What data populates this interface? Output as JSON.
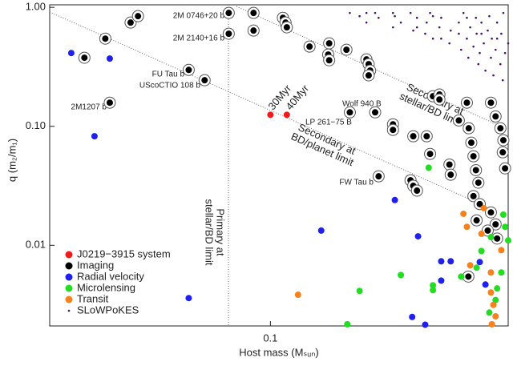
{
  "chart_data": {
    "type": "scatter",
    "xlabel": "Host mass (Mₛᵤₙ)",
    "ylabel": "q (m₂/m₁)",
    "xscale": "log",
    "yscale": "log",
    "xlim": [
      0.0218,
      0.516
    ],
    "ylim": [
      0.0021,
      1.05
    ],
    "xticks": [
      0.1
    ],
    "yticks": [
      {
        "value": 1,
        "label": "1.00"
      },
      {
        "value": 0.1,
        "label": "0.10"
      },
      0.01
    ],
    "legend": "lower left",
    "annotations": [
      "2M 0746+20 b",
      "2M 2140+16 b",
      "FU Tau b",
      "UScoCTIO 108 b",
      "2M1207 b",
      "30Myr",
      "40Myr",
      "Wolf 940 B",
      "LP 261−75 B",
      "FW Tau b",
      [
        "Secondary at",
        "stellar/BD limit"
      ],
      [
        "Secondary at",
        "BD/planet limit"
      ],
      [
        "Primary at",
        "stellar/BD limit"
      ]
    ],
    "series": [
      {
        "name": "J0219−3915 system",
        "color": "#ee1c1c",
        "outline": false,
        "x": [
          0.1,
          0.112
        ],
        "y": [
          0.125,
          0.125
        ]
      },
      {
        "name": "Imaging",
        "color": "#000000",
        "outline": true,
        "x": [
          0.0277,
          0.032,
          0.033,
          0.0381,
          0.0401,
          0.0569,
          0.0635,
          0.075,
          0.075,
          0.089,
          0.089,
          0.109,
          0.111,
          0.112,
          0.131,
          0.15,
          0.149,
          0.15,
          0.169,
          0.173,
          0.194,
          0.197,
          0.199,
          0.197,
          0.206,
          0.233,
          0.233,
          0.211,
          0.268,
          0.263,
          0.268,
          0.275,
          0.294,
          0.301,
          0.307,
          0.321,
          0.321,
          0.344,
          0.347,
          0.367,
          0.388,
          0.393,
          0.4,
          0.406,
          0.413,
          0.42,
          0.406,
          0.424,
          0.458,
          0.473,
          0.489,
          0.499,
          0.458,
          0.473,
          0.478,
          0.448,
          0.415,
          0.392,
          0.497,
          0.505
        ],
        "y": [
          0.377,
          0.546,
          0.158,
          0.745,
          0.843,
          0.298,
          0.244,
          0.897,
          0.6,
          0.897,
          0.638,
          0.817,
          0.745,
          0.679,
          0.468,
          0.498,
          0.401,
          0.359,
          0.44,
          0.131,
          0.365,
          0.333,
          0.294,
          0.268,
          0.131,
          0.104,
          0.0933,
          0.038,
          0.0825,
          0.0352,
          0.0316,
          0.0288,
          0.0825,
          0.0586,
          0.179,
          0.185,
          0.168,
          0.0477,
          0.0392,
          0.112,
          0.158,
          0.0963,
          0.0729,
          0.056,
          0.0428,
          0.0336,
          0.0259,
          0.0222,
          0.158,
          0.121,
          0.0963,
          0.0764,
          0.0189,
          0.015,
          0.0114,
          0.0133,
          0.0162,
          0.00546,
          0.0605,
          0.0443
        ]
      },
      {
        "name": "Radial velocity",
        "color": "#1f1fee",
        "outline": false,
        "x": [
          0.0253,
          0.033,
          0.0297,
          0.0569,
          0.142,
          0.236,
          0.277,
          0.325,
          0.347,
          0.424,
          0.266,
          0.325,
          0.441,
          0.291
        ],
        "y": [
          0.413,
          0.371,
          0.0825,
          0.0036,
          0.0133,
          0.024,
          0.0119,
          0.00734,
          0.00734,
          0.00723,
          0.0025,
          0.00505,
          0.00468,
          0.00215
        ]
      },
      {
        "name": "Microlensing",
        "color": "#22dd22",
        "outline": false,
        "x": [
          0.298,
          0.246,
          0.307,
          0.307,
          0.373,
          0.185,
          0.17,
          0.415,
          0.453,
          0.473,
          0.478,
          0.492,
          0.499,
          0.505,
          0.516,
          0.458,
          0.429
        ],
        "y": [
          0.0449,
          0.00563,
          0.00461,
          0.0042,
          0.00546,
          0.00414,
          0.00217,
          0.00649,
          0.00272,
          0.00347,
          0.00434,
          0.00591,
          0.0181,
          0.0143,
          0.011,
          0.0117,
          0.00896
        ]
      },
      {
        "name": "Transit",
        "color": "#f7811c",
        "outline": false,
        "x": [
          0.121,
          0.379,
          0.388,
          0.436,
          0.397,
          0.458,
          0.458,
          0.466,
          0.473,
          0.461,
          0.492,
          0.429
        ],
        "y": [
          0.00384,
          0.0184,
          0.0143,
          0.0205,
          0.00679,
          0.00591,
          0.00401,
          0.00316,
          0.00253,
          0.00217,
          0.0091,
          0.0125
        ]
      },
      {
        "name": "SLoWPoKES",
        "color": "#4b0f6e",
        "outline": false,
        "small": true,
        "x": [
          0.173,
          0.185,
          0.194,
          0.206,
          0.211,
          0.233,
          0.236,
          0.246,
          0.263,
          0.268,
          0.275,
          0.291,
          0.294,
          0.301,
          0.307,
          0.321,
          0.325,
          0.344,
          0.347,
          0.367,
          0.373,
          0.379,
          0.388,
          0.392,
          0.397,
          0.406,
          0.413,
          0.415,
          0.42,
          0.424,
          0.429,
          0.436,
          0.441,
          0.448,
          0.453,
          0.458,
          0.461,
          0.466,
          0.473,
          0.478,
          0.489,
          0.492,
          0.497,
          0.499,
          0.505,
          0.516,
          0.194,
          0.233,
          0.275,
          0.325,
          0.367,
          0.429,
          0.478,
          0.307,
          0.388
        ],
        "y": [
          0.897,
          0.843,
          0.745,
          0.897,
          0.817,
          0.679,
          0.843,
          0.745,
          0.897,
          0.638,
          0.817,
          0.6,
          0.745,
          0.897,
          0.546,
          0.679,
          0.817,
          0.498,
          0.638,
          0.745,
          0.44,
          0.897,
          0.546,
          0.377,
          0.679,
          0.468,
          0.817,
          0.6,
          0.333,
          0.413,
          0.745,
          0.498,
          0.294,
          0.638,
          0.843,
          0.377,
          0.546,
          0.268,
          0.44,
          0.745,
          0.333,
          0.6,
          0.244,
          0.897,
          0.413,
          0.498,
          0.897,
          0.897,
          0.679,
          0.546,
          0.6,
          0.6,
          0.546,
          0.843,
          0.817
        ]
      }
    ]
  }
}
